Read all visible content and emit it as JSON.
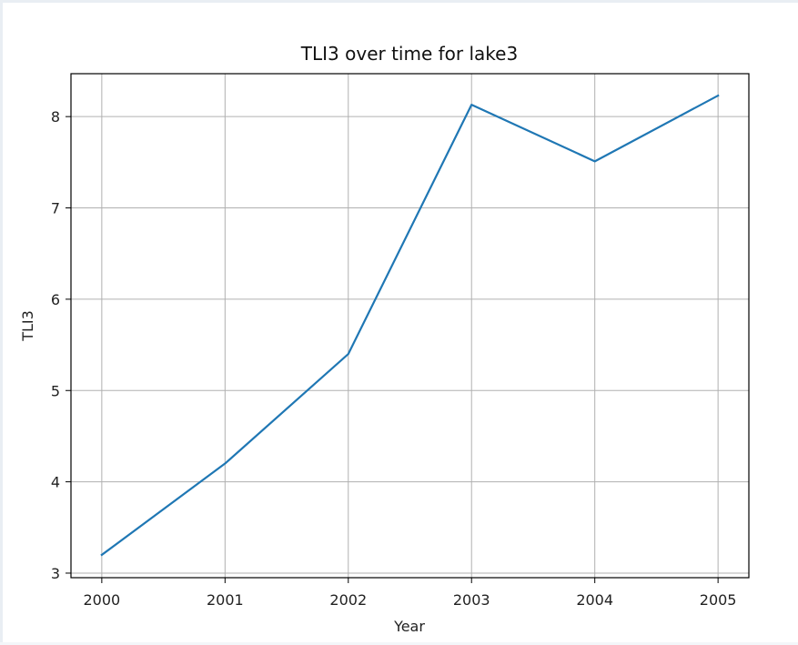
{
  "chart_data": {
    "type": "line",
    "title": "TLI3 over time for lake3",
    "xlabel": "Year",
    "ylabel": "TLI3",
    "x": [
      2000,
      2001,
      2002,
      2003,
      2004,
      2005
    ],
    "series": [
      {
        "values": [
          3.2,
          4.2,
          5.4,
          8.13,
          7.51,
          8.23
        ]
      }
    ],
    "xlim": [
      1999.75,
      2005.25
    ],
    "ylim": [
      2.95,
      8.47
    ],
    "xticks": [
      2000,
      2001,
      2002,
      2003,
      2004,
      2005
    ],
    "yticks": [
      3,
      4,
      5,
      6,
      7,
      8
    ],
    "grid": true,
    "line_color": "#1f77b4"
  }
}
